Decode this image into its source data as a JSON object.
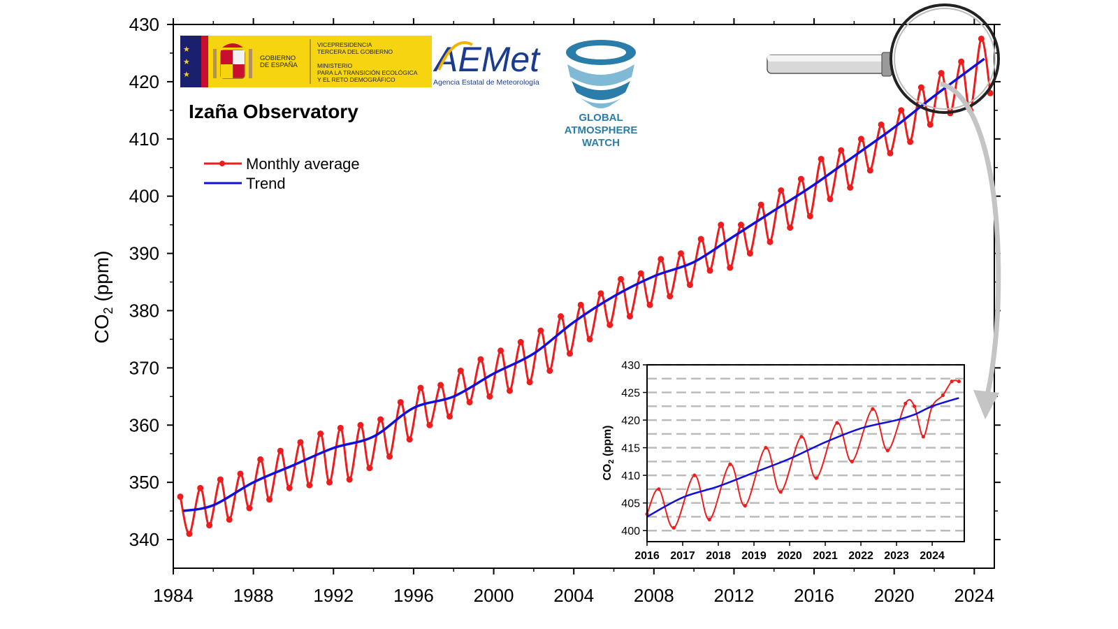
{
  "logos": {
    "gobierno": [
      "GOBIERNO",
      "DE ESPAÑA"
    ],
    "ministerio": [
      "VICEPRESIDENCIA",
      "TERCERA DEL GOBIERNO",
      "MINISTERIO",
      "PARA LA TRANSICIÓN ECOLÓGICA",
      "Y EL RETO DEMOGRÁFICO"
    ],
    "aemet_name": "AEMet",
    "aemet_sub": "Agencia Estatal de Meteorología",
    "gaw": [
      "GLOBAL",
      "ATMOSPHERE",
      "WATCH"
    ]
  },
  "colors": {
    "monthly": "#ee1c1c",
    "trend": "#1010dd",
    "axis": "#000000",
    "inset_grid": "#bbbbbb",
    "gaw_blue": "#2a7da8",
    "aemet_blue": "#1b3b8f",
    "aemet_yellow": "#f0b400",
    "gob_yellow": "#f6d40f",
    "gob_red": "#c8102e",
    "gob_blue": "#1a1f6e"
  },
  "chart_data": [
    {
      "type": "line",
      "title": "Izaña Observatory",
      "xlabel": "",
      "ylabel": "CO2 (ppm)",
      "ylabel_main": "CO",
      "ylabel_sub": "2",
      "ylabel_unit": "(ppm)",
      "xlim": [
        1984,
        2025
      ],
      "ylim": [
        335,
        430
      ],
      "xticks": [
        1984,
        1988,
        1992,
        1996,
        2000,
        2004,
        2008,
        2012,
        2016,
        2020,
        2024
      ],
      "yticks": [
        340,
        350,
        360,
        370,
        380,
        390,
        400,
        410,
        420,
        430
      ],
      "grid": false,
      "legend_position": "top-left",
      "legend": [
        "Monthly average",
        "Trend"
      ],
      "series": [
        {
          "name": "Monthly average",
          "x": [
            1984.5,
            1985.5,
            1986.5,
            1987.5,
            1988.5,
            1989.5,
            1990.5,
            1991.5,
            1992.5,
            1993.5,
            1994.5,
            1995.5,
            1996.5,
            1997.5,
            1998.5,
            1999.5,
            2000.5,
            2001.5,
            2002.5,
            2003.5,
            2004.5,
            2005.5,
            2006.5,
            2007.5,
            2008.5,
            2009.5,
            2010.5,
            2011.5,
            2012.5,
            2013.5,
            2014.5,
            2015.5,
            2016.5,
            2017.5,
            2018.5,
            2019.5,
            2020.5,
            2021.5,
            2022.5,
            2023.5,
            2024.5
          ],
          "peak": [
            347.5,
            349.0,
            350.5,
            351.5,
            354.0,
            355.5,
            357.0,
            358.5,
            359.5,
            360.0,
            361.0,
            364.0,
            366.5,
            367.0,
            369.5,
            371.5,
            373.0,
            374.5,
            376.5,
            379.0,
            381.0,
            383.0,
            385.5,
            386.5,
            389.0,
            390.0,
            392.5,
            395.0,
            395.0,
            398.5,
            401.0,
            403.0,
            406.5,
            408.0,
            410.0,
            412.5,
            415.0,
            419.0,
            421.5,
            423.5,
            427.5
          ],
          "trough": [
            341.0,
            342.5,
            343.5,
            345.5,
            347.0,
            349.0,
            349.5,
            350.0,
            350.5,
            352.5,
            354.5,
            357.5,
            360.0,
            361.5,
            364.0,
            365.0,
            366.0,
            367.5,
            369.5,
            372.5,
            375.0,
            377.5,
            379.0,
            381.0,
            382.5,
            384.5,
            387.0,
            387.5,
            390.0,
            392.0,
            394.5,
            396.5,
            399.5,
            401.5,
            404.5,
            407.5,
            409.5,
            412.5,
            414.5,
            415.0,
            418.0
          ]
        },
        {
          "name": "Trend",
          "x": [
            1984.5,
            1986,
            1988,
            1990,
            1992,
            1994,
            1996,
            1998,
            2000,
            2002,
            2004,
            2006,
            2008,
            2010,
            2012,
            2014,
            2016,
            2018,
            2020,
            2022,
            2024.5
          ],
          "y": [
            345.0,
            346.0,
            350.0,
            353.0,
            356.0,
            358.0,
            363.0,
            365.0,
            369.0,
            372.5,
            378.0,
            382.5,
            386.0,
            388.5,
            393.0,
            397.5,
            402.0,
            407.0,
            412.0,
            417.5,
            424.0
          ]
        }
      ]
    },
    {
      "type": "line",
      "title": "",
      "xlabel": "",
      "ylabel": "CO2 (ppm)",
      "ylabel_main": "CO",
      "ylabel_sub": "2",
      "ylabel_unit": "(ppm)",
      "xlim": [
        2016,
        2024.9
      ],
      "ylim": [
        398,
        430
      ],
      "xticks": [
        2016,
        2017,
        2018,
        2019,
        2020,
        2021,
        2022,
        2023,
        2024
      ],
      "yticks": [
        400,
        405,
        410,
        415,
        420,
        425,
        430
      ],
      "grid": true,
      "legend_position": "none",
      "series": [
        {
          "name": "Monthly average",
          "x": [
            2016.0,
            2016.33,
            2016.75,
            2017.33,
            2017.75,
            2018.33,
            2018.75,
            2019.33,
            2019.75,
            2020.33,
            2020.75,
            2021.33,
            2021.75,
            2022.33,
            2022.75,
            2023.25,
            2023.5,
            2023.75,
            2024.0,
            2024.3,
            2024.55,
            2024.75
          ],
          "y": [
            403.0,
            407.5,
            400.5,
            410.0,
            402.0,
            412.0,
            404.5,
            415.0,
            407.0,
            417.0,
            409.5,
            419.5,
            412.5,
            422.0,
            414.5,
            423.0,
            422.5,
            417.0,
            422.5,
            424.5,
            427.0,
            427.0
          ]
        },
        {
          "name": "Trend",
          "x": [
            2016.0,
            2017.0,
            2018.0,
            2019.0,
            2020.0,
            2021.0,
            2022.0,
            2023.0,
            2023.5,
            2024.0,
            2024.75
          ],
          "y": [
            402.5,
            406.0,
            408.0,
            410.5,
            413.0,
            416.0,
            418.5,
            420.0,
            421.0,
            422.5,
            424.0
          ]
        }
      ]
    }
  ]
}
